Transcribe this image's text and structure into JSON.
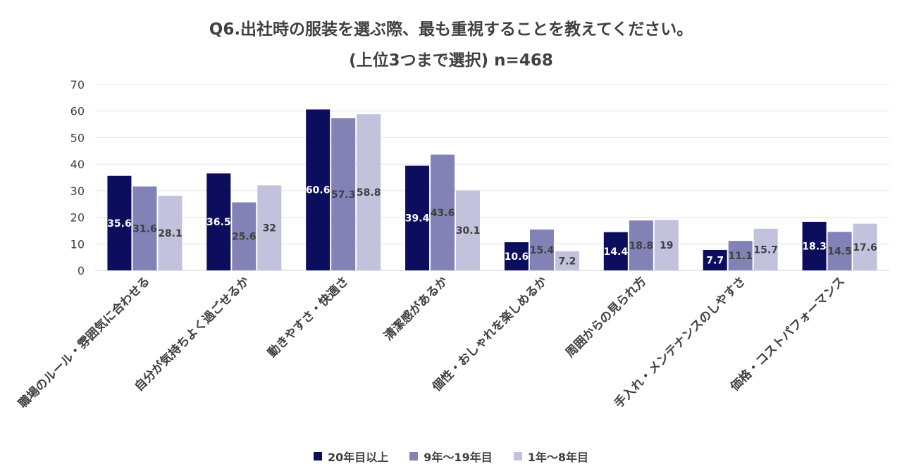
{
  "chart_data": {
    "type": "bar",
    "title": "Q6.出社時の服装を選ぶ際、最も重視することを教えてください。",
    "subtitle": "(上位3つまで選択) n=468",
    "categories": [
      "職場のルール・雰囲気に合わせる",
      "自分が気持ちよく過ごせるか",
      "動きやすさ・快適さ",
      "清潔感があるか",
      "個性・おしゃれを楽しめるか",
      "周囲からの見られ方",
      "手入れ・メンテナンスのしやすさ",
      "価格・コストパフォーマンス"
    ],
    "series": [
      {
        "name": "20年目以上",
        "color": "#0d0d5e",
        "label_color": "#ffffff",
        "values": [
          35.6,
          36.5,
          60.6,
          39.4,
          10.6,
          14.4,
          7.7,
          18.3
        ]
      },
      {
        "name": "9年～19年目",
        "color": "#8282b6",
        "label_color": "#404040",
        "values": [
          31.6,
          25.6,
          57.3,
          43.6,
          15.4,
          18.8,
          11.1,
          14.5
        ]
      },
      {
        "name": "1年～8年目",
        "color": "#c2c2dd",
        "label_color": "#404040",
        "values": [
          28.1,
          32,
          58.8,
          30.1,
          7.2,
          19,
          15.7,
          17.6
        ]
      }
    ],
    "yticks": [
      0,
      10,
      20,
      30,
      40,
      50,
      60,
      70
    ],
    "ylim": [
      0,
      70
    ],
    "xlabel": "",
    "ylabel": "",
    "grid": true,
    "legend_position": "bottom"
  }
}
